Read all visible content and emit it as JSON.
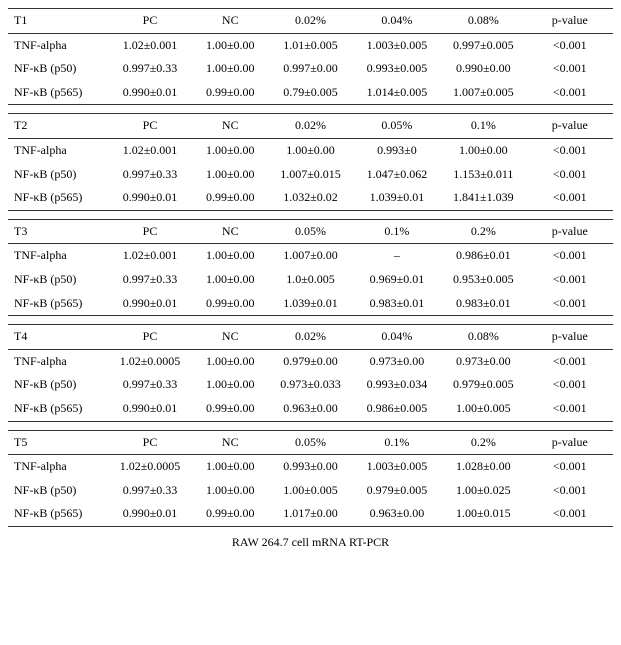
{
  "caption": "RAW 264.7 cell mRNA RT-PCR",
  "col_headers_common": {
    "pc": "PC",
    "nc": "NC",
    "pvalue": "p-value"
  },
  "rows_common": {
    "tnf": "TNF-alpha",
    "p50": "NF-κB (p50)",
    "p565": "NF-κB (p565)"
  },
  "tables": [
    {
      "label": "T1",
      "doses": [
        "0.02%",
        "0.04%",
        "0.08%"
      ],
      "tnf": {
        "pc": "1.02±0.001",
        "nc": "1.00±0.00",
        "d1": "1.01±0.005",
        "d2": "1.003±0.005",
        "d3": "0.997±0.005",
        "p": "<0.001"
      },
      "p50": {
        "pc": "0.997±0.33",
        "nc": "1.00±0.00",
        "d1": "0.997±0.00",
        "d2": "0.993±0.005",
        "d3": "0.990±0.00",
        "p": "<0.001"
      },
      "p565": {
        "pc": "0.990±0.01",
        "nc": "0.99±0.00",
        "d1": "0.79±0.005",
        "d2": "1.014±0.005",
        "d3": "1.007±0.005",
        "p": "<0.001"
      }
    },
    {
      "label": "T2",
      "doses": [
        "0.02%",
        "0.05%",
        "0.1%"
      ],
      "tnf": {
        "pc": "1.02±0.001",
        "nc": "1.00±0.00",
        "d1": "1.00±0.00",
        "d2": "0.993±0",
        "d3": "1.00±0.00",
        "p": "<0.001"
      },
      "p50": {
        "pc": "0.997±0.33",
        "nc": "1.00±0.00",
        "d1": "1.007±0.015",
        "d2": "1.047±0.062",
        "d3": "1.153±0.011",
        "p": "<0.001"
      },
      "p565": {
        "pc": "0.990±0.01",
        "nc": "0.99±0.00",
        "d1": "1.032±0.02",
        "d2": "1.039±0.01",
        "d3": "1.841±1.039",
        "p": "<0.001"
      }
    },
    {
      "label": "T3",
      "doses": [
        "0.05%",
        "0.1%",
        "0.2%"
      ],
      "tnf": {
        "pc": "1.02±0.001",
        "nc": "1.00±0.00",
        "d1": "1.007±0.00",
        "d2": "–",
        "d3": "0.986±0.01",
        "p": "<0.001"
      },
      "p50": {
        "pc": "0.997±0.33",
        "nc": "1.00±0.00",
        "d1": "1.0±0.005",
        "d2": "0.969±0.01",
        "d3": "0.953±0.005",
        "p": "<0.001"
      },
      "p565": {
        "pc": "0.990±0.01",
        "nc": "0.99±0.00",
        "d1": "1.039±0.01",
        "d2": "0.983±0.01",
        "d3": "0.983±0.01",
        "p": "<0.001"
      }
    },
    {
      "label": "T4",
      "doses": [
        "0.02%",
        "0.04%",
        "0.08%"
      ],
      "tnf": {
        "pc": "1.02±0.0005",
        "nc": "1.00±0.00",
        "d1": "0.979±0.00",
        "d2": "0.973±0.00",
        "d3": "0.973±0.00",
        "p": "<0.001"
      },
      "p50": {
        "pc": "0.997±0.33",
        "nc": "1.00±0.00",
        "d1": "0.973±0.033",
        "d2": "0.993±0.034",
        "d3": "0.979±0.005",
        "p": "<0.001"
      },
      "p565": {
        "pc": "0.990±0.01",
        "nc": "0.99±0.00",
        "d1": "0.963±0.00",
        "d2": "0.986±0.005",
        "d3": "1.00±0.005",
        "p": "<0.001"
      }
    },
    {
      "label": "T5",
      "doses": [
        "0.05%",
        "0.1%",
        "0.2%"
      ],
      "tnf": {
        "pc": "1.02±0.0005",
        "nc": "1.00±0.00",
        "d1": "0.993±0.00",
        "d2": "1.003±0.005",
        "d3": "1.028±0.00",
        "p": "<0.001"
      },
      "p50": {
        "pc": "0.997±0.33",
        "nc": "1.00±0.00",
        "d1": "1.00±0.005",
        "d2": "0.979±0.005",
        "d3": "1.00±0.025",
        "p": "<0.001"
      },
      "p565": {
        "pc": "0.990±0.01",
        "nc": "0.99±0.00",
        "d1": "1.017±0.00",
        "d2": "0.963±0.00",
        "d3": "1.00±0.015",
        "p": "<0.001"
      }
    }
  ]
}
